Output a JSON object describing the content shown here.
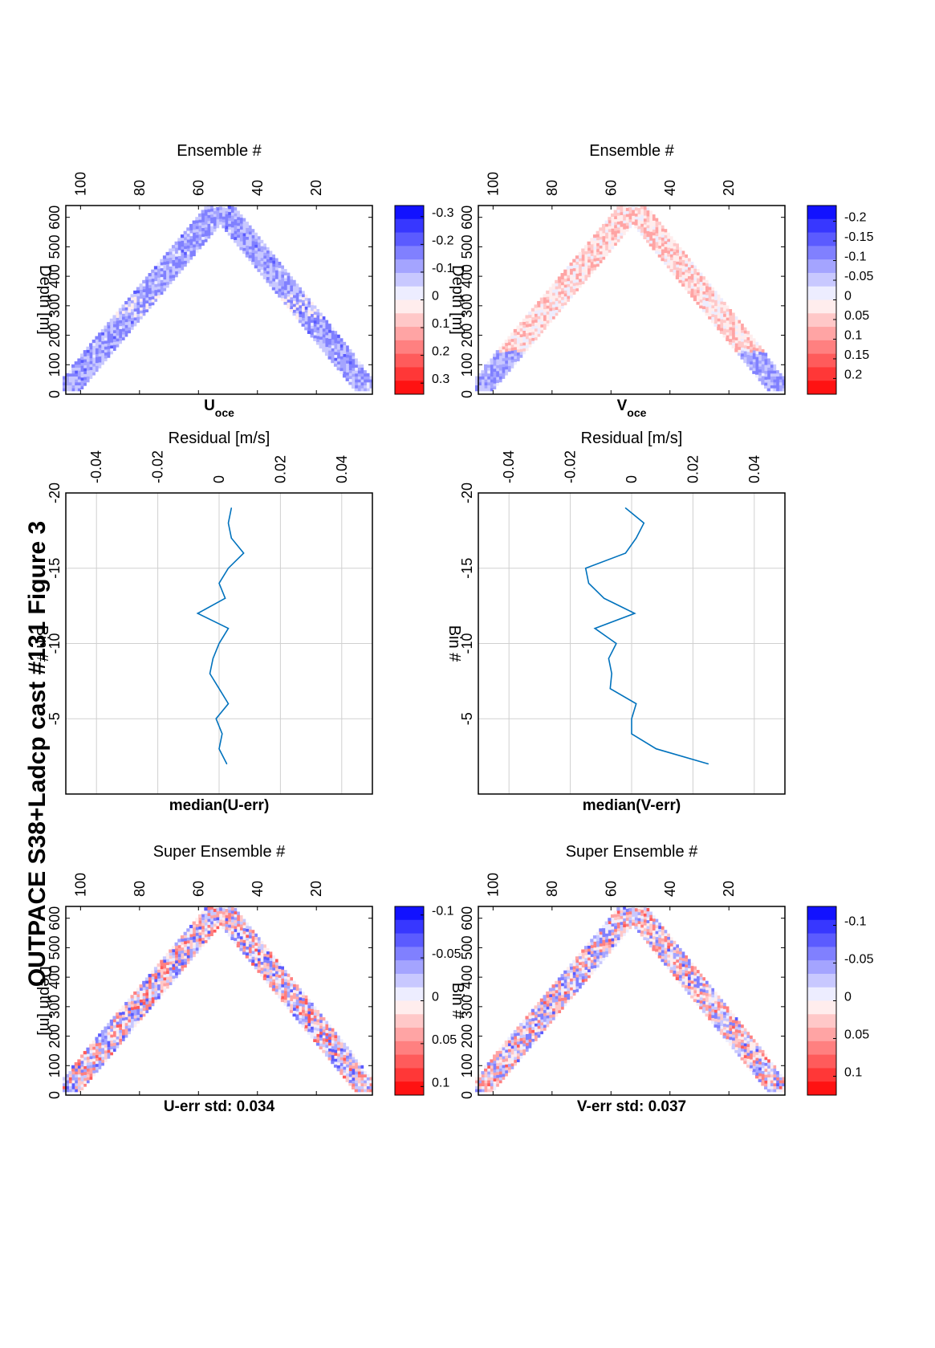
{
  "figure": {
    "title": "OUTPACE S38+Ladcp cast #131  Figure 3",
    "orientation": "landscape page rendered rotated 90° counter-clockwise"
  },
  "colors": {
    "positive": "#ff0000",
    "zero": "#ffffff",
    "negative": "#0000ff",
    "line": "#0072bd",
    "grid": "#d0d0d0"
  },
  "chart_data": [
    {
      "id": "uerr",
      "type": "heatmap",
      "title": "U-err std: 0.034",
      "xlabel": "Super Ensemble #",
      "ylabel": "Depth [m]",
      "xlim": [
        1,
        105
      ],
      "ylim": [
        0,
        640
      ],
      "y_reversed": true,
      "xticks": [
        20,
        40,
        60,
        80,
        100
      ],
      "yticks": [
        0,
        100,
        200,
        300,
        400,
        500,
        600
      ],
      "pattern": "V-shaped down/up cast band, noisy residuals",
      "bottom_ensemble": 52,
      "max_depth": 630,
      "band_halfwidth_ensembles": 8,
      "amplitude": 0.07,
      "colorbar": {
        "ticks": [
          0.1,
          0.05,
          0,
          -0.05,
          -0.1
        ],
        "range": [
          -0.11,
          0.11
        ],
        "levels": 14
      }
    },
    {
      "id": "umed",
      "type": "line",
      "title": "median(U-err)",
      "xlabel": "Residual [m/s]",
      "ylabel": "Bin #",
      "xlim": [
        -0.05,
        0.05
      ],
      "ylim": [
        0,
        -20
      ],
      "xticks": [
        -0.04,
        -0.02,
        0,
        0.02,
        0.04
      ],
      "yticks": [
        -5,
        -10,
        -15,
        -20
      ],
      "grid": true,
      "series": [
        {
          "x": [
            0.0025,
            0.0,
            0.001,
            -0.001,
            0.003,
            0.0,
            -0.003,
            -0.002,
            0.0,
            0.003,
            -0.007,
            0.002,
            0.0,
            0.003,
            0.008,
            0.004,
            0.003,
            0.004
          ],
          "y": [
            -2,
            -3,
            -4,
            -5,
            -6,
            -7,
            -8,
            -9,
            -10,
            -11,
            -12,
            -13,
            -14,
            -15,
            -16,
            -17,
            -18,
            -19
          ]
        }
      ]
    },
    {
      "id": "uoce",
      "type": "heatmap",
      "title": "U",
      "title_sub": "oce",
      "xlabel": "Ensemble #",
      "ylabel": "Depth [m]",
      "xlim": [
        1,
        105
      ],
      "ylim": [
        0,
        640
      ],
      "y_reversed": true,
      "xticks": [
        20,
        40,
        60,
        80,
        100
      ],
      "yticks": [
        0,
        100,
        200,
        300,
        400,
        500,
        600
      ],
      "pattern": "V-shaped cast band, predominantly negative (blue) with weak red patches",
      "bottom_ensemble": 52,
      "max_depth": 630,
      "band_halfwidth_ensembles": 8,
      "amplitude": 0.08,
      "bias": -0.12,
      "colorbar": {
        "ticks": [
          0.3,
          0.2,
          0.1,
          0,
          -0.1,
          -0.2,
          -0.3
        ],
        "range": [
          -0.34,
          0.34
        ],
        "levels": 14
      }
    },
    {
      "id": "verr",
      "type": "heatmap",
      "title": "V-err std: 0.037",
      "xlabel": "Super Ensemble #",
      "ylabel": "Bin #",
      "xlim": [
        1,
        105
      ],
      "ylim": [
        0,
        640
      ],
      "y_reversed": true,
      "xticks": [
        20,
        40,
        60,
        80,
        100
      ],
      "yticks": [
        0,
        100,
        200,
        300,
        400,
        500,
        600
      ],
      "pattern": "V-shaped down/up cast band, noisy residuals",
      "bottom_ensemble": 52,
      "max_depth": 630,
      "band_halfwidth_ensembles": 8,
      "amplitude": 0.075,
      "colorbar": {
        "ticks": [
          0.1,
          0.05,
          0,
          -0.05,
          -0.1
        ],
        "range": [
          -0.125,
          0.125
        ],
        "levels": 14
      }
    },
    {
      "id": "vmed",
      "type": "line",
      "title": "median(V-err)",
      "xlabel": "Residual [m/s]",
      "ylabel": "Bin #",
      "xlim": [
        -0.05,
        0.05
      ],
      "ylim": [
        0,
        -20
      ],
      "xticks": [
        -0.04,
        -0.02,
        0,
        0.02,
        0.04
      ],
      "yticks": [
        -5,
        -10,
        -15,
        -20
      ],
      "grid": true,
      "series": [
        {
          "x": [
            0.025,
            0.008,
            0.0,
            0.0,
            0.0015,
            -0.007,
            -0.0065,
            -0.0075,
            -0.005,
            -0.012,
            0.001,
            -0.009,
            -0.014,
            -0.015,
            -0.002,
            0.0015,
            0.004,
            -0.002
          ],
          "y": [
            -2,
            -3,
            -4,
            -5,
            -6,
            -7,
            -8,
            -9,
            -10,
            -11,
            -12,
            -13,
            -14,
            -15,
            -16,
            -17,
            -18,
            -19
          ]
        }
      ]
    },
    {
      "id": "voce",
      "type": "heatmap",
      "title": "V",
      "title_sub": "oce",
      "xlabel": "Ensemble #",
      "ylabel": "Depth [m]",
      "xlim": [
        1,
        105
      ],
      "ylim": [
        0,
        640
      ],
      "y_reversed": true,
      "xticks": [
        20,
        40,
        60,
        80,
        100
      ],
      "yticks": [
        0,
        100,
        200,
        300,
        400,
        500,
        600
      ],
      "pattern": "V-shaped cast band, mostly positive (red) at depth, blue near surface",
      "bottom_ensemble": 52,
      "max_depth": 630,
      "band_halfwidth_ensembles": 8,
      "amplitude": 0.06,
      "bias": 0.04,
      "colorbar": {
        "ticks": [
          0.2,
          0.15,
          0.1,
          0.05,
          0,
          -0.05,
          -0.1,
          -0.15,
          -0.2
        ],
        "range": [
          -0.24,
          0.24
        ],
        "levels": 14
      }
    }
  ]
}
